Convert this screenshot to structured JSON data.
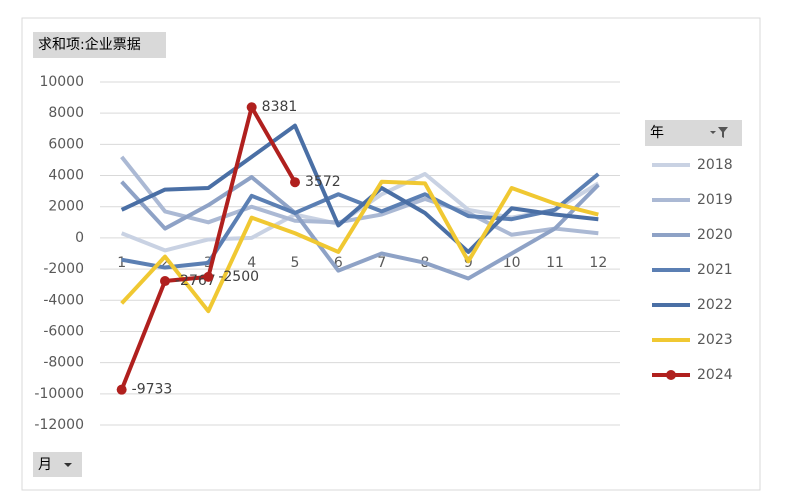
{
  "chart_data": {
    "type": "line",
    "value_button": "求和项:企业票据",
    "legend_title": "年",
    "axis_button": "月",
    "categories": [
      "1",
      "2",
      "3",
      "4",
      "5",
      "6",
      "7",
      "8",
      "9",
      "10",
      "11",
      "12"
    ],
    "ylim": [
      -12000,
      10000
    ],
    "yticks": [
      -12000,
      -10000,
      -8000,
      -6000,
      -4000,
      -2000,
      0,
      2000,
      4000,
      6000,
      8000,
      10000
    ],
    "grid": true,
    "legend": "right",
    "series": [
      {
        "name": "2018",
        "color": "#c9d2e3",
        "values": [
          300,
          -800,
          -100,
          0,
          1500,
          900,
          2800,
          4100,
          1800,
          1300,
          1800,
          3500
        ]
      },
      {
        "name": "2019",
        "color": "#abb9d4",
        "values": [
          5200,
          1700,
          1000,
          2000,
          1100,
          1000,
          1500,
          2500,
          1600,
          200,
          600,
          300
        ]
      },
      {
        "name": "2020",
        "color": "#8ea2c6",
        "values": [
          3600,
          600,
          2100,
          3900,
          1600,
          -2100,
          -1000,
          -1600,
          -2600,
          -1000,
          600,
          3400
        ]
      },
      {
        "name": "2021",
        "color": "#5b7fb3",
        "values": [
          -1400,
          -1900,
          -1600,
          2700,
          1600,
          2800,
          1700,
          2800,
          1400,
          1200,
          1800,
          4100
        ]
      },
      {
        "name": "2022",
        "color": "#4a6fa5",
        "values": [
          1800,
          3100,
          3200,
          5200,
          7200,
          800,
          3200,
          1600,
          -900,
          1900,
          1500,
          1200
        ]
      },
      {
        "name": "2023",
        "color": "#f0c832",
        "values": [
          -4200,
          -1200,
          -4700,
          1300,
          300,
          -900,
          3600,
          3500,
          -1500,
          3200,
          2200,
          1500
        ]
      },
      {
        "name": "2024",
        "color": "#b0201e",
        "markers": true,
        "data_labels": true,
        "values": [
          -9733,
          -2767,
          -2500,
          8381,
          3572,
          null,
          null,
          null,
          null,
          null,
          null,
          null
        ]
      }
    ]
  }
}
